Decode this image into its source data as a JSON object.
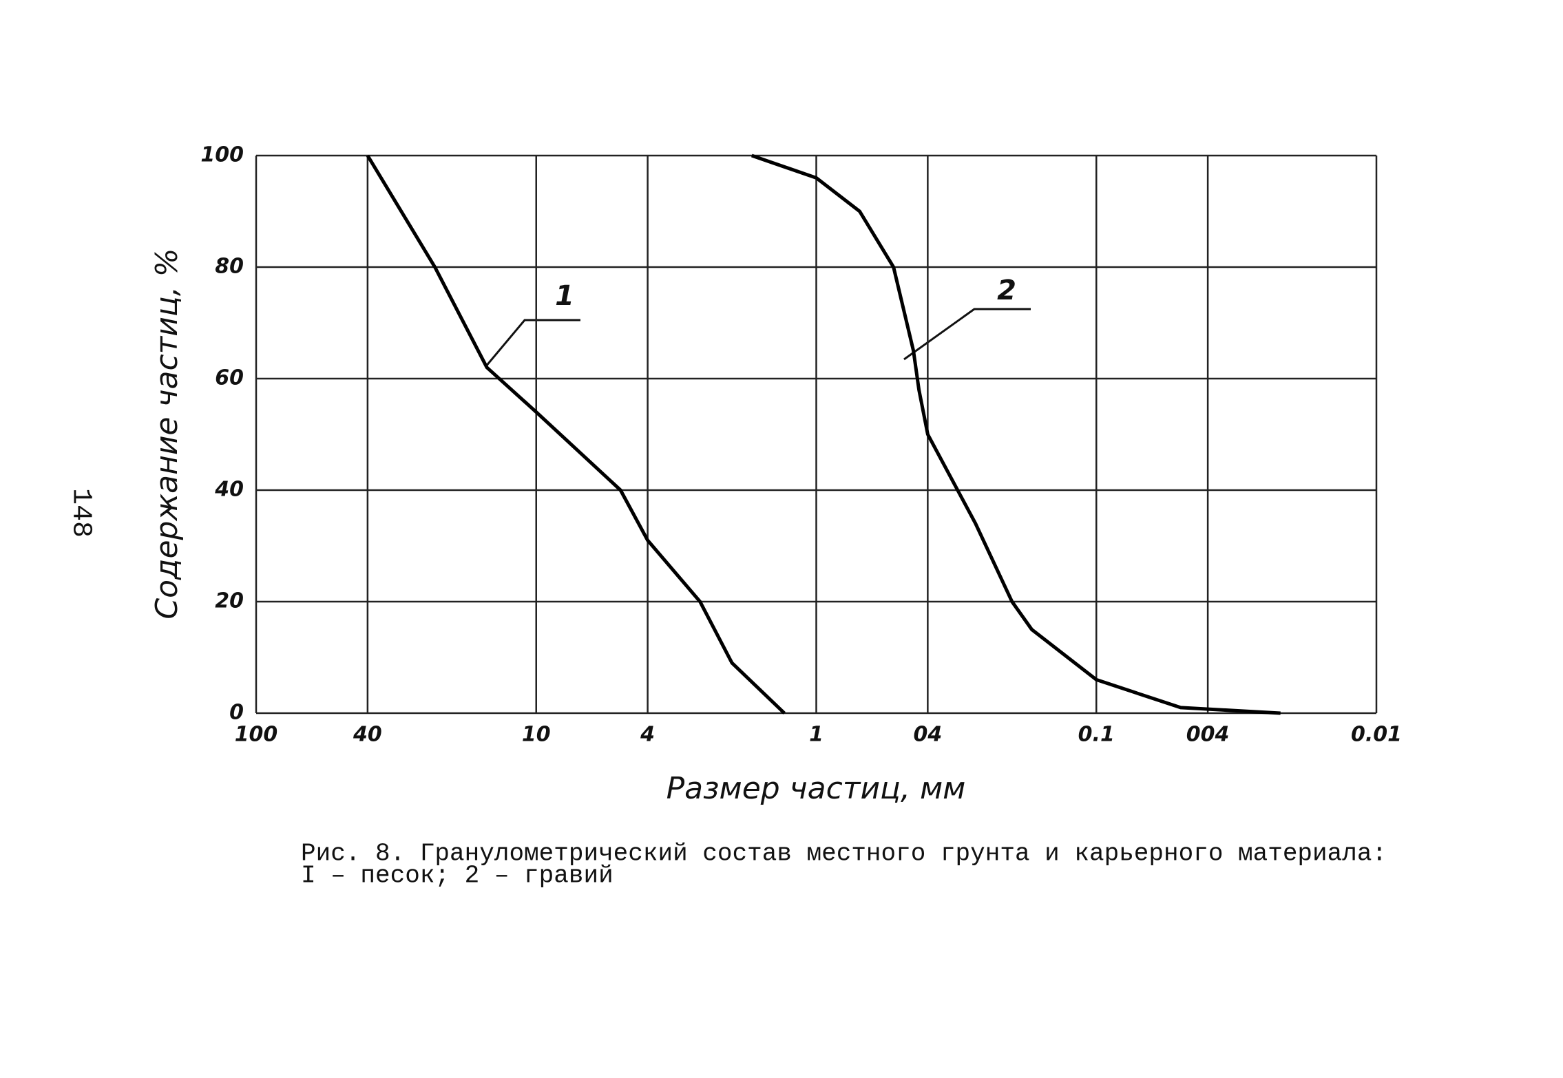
{
  "chart_data": {
    "type": "line",
    "x_label": "Размер частиц, мм",
    "y_label": "Содержание частиц, %",
    "caption": [
      "Рис. 8. Гранулометрический состав местного грунта и карьерного материала:",
      "I – песок; 2 – гравий"
    ],
    "page_number": "148",
    "xlim": [
      100,
      0.01
    ],
    "x_log": true,
    "xticks": [
      100,
      40,
      10,
      4,
      1,
      {
        "value": 0.4,
        "label": "04"
      },
      0.1,
      {
        "value": 0.04,
        "label": "004"
      },
      0.01
    ],
    "ylim": [
      0,
      100
    ],
    "yticks": [
      0,
      20,
      40,
      60,
      80,
      100
    ],
    "grid": true,
    "series": [
      {
        "name": "1",
        "color": "#000000",
        "x": [
          40,
          23,
          15,
          10,
          5,
          4,
          2.6,
          2,
          1.3
        ],
        "values": [
          100,
          80,
          62,
          54,
          40,
          31,
          20,
          9,
          0
        ]
      },
      {
        "name": "2",
        "color": "#000000",
        "x": [
          1.7,
          1,
          0.7,
          0.53,
          0.45,
          0.43,
          0.4,
          0.27,
          0.2,
          0.17,
          0.1,
          0.05,
          0.022
        ],
        "values": [
          100,
          96,
          90,
          80,
          65,
          58,
          50,
          34,
          20,
          15,
          6,
          1,
          0
        ]
      }
    ]
  }
}
